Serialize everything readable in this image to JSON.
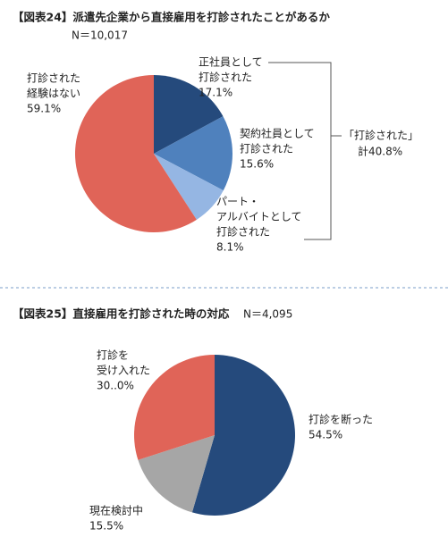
{
  "chart_data": [
    {
      "type": "pie",
      "title": "【図表24】派遣先企業から直接雇用を打診されたことがあるか",
      "subtitle": "N＝10,017",
      "categories": [
        [
          "正社員として",
          "打診された"
        ],
        [
          "契約社員として",
          "打診された"
        ],
        [
          "パート・",
          "アルバイトとして",
          "打診された"
        ],
        [
          "打診された",
          "経験はない"
        ]
      ],
      "values": [
        17.1,
        15.6,
        8.1,
        59.1
      ],
      "value_labels": [
        "17.1%",
        "15.6%",
        "8.1%",
        "59.1%"
      ],
      "colors": [
        "#254a7c",
        "#4f81bd",
        "#95b6e3",
        "#e06458"
      ],
      "annotation": [
        "「打診された」",
        "計40.8%"
      ]
    },
    {
      "type": "pie",
      "title": "【図表25】直接雇用を打診された時の対応",
      "subtitle": "N＝4,095",
      "categories": [
        [
          "打診を断った"
        ],
        [
          "現在検討中"
        ],
        [
          "打診を",
          "受け入れた"
        ]
      ],
      "values": [
        54.5,
        15.5,
        30.0
      ],
      "value_labels": [
        "54.5%",
        "15.5%",
        "30..0%"
      ],
      "colors": [
        "#254a7c",
        "#a6a6a6",
        "#e06458"
      ]
    }
  ]
}
